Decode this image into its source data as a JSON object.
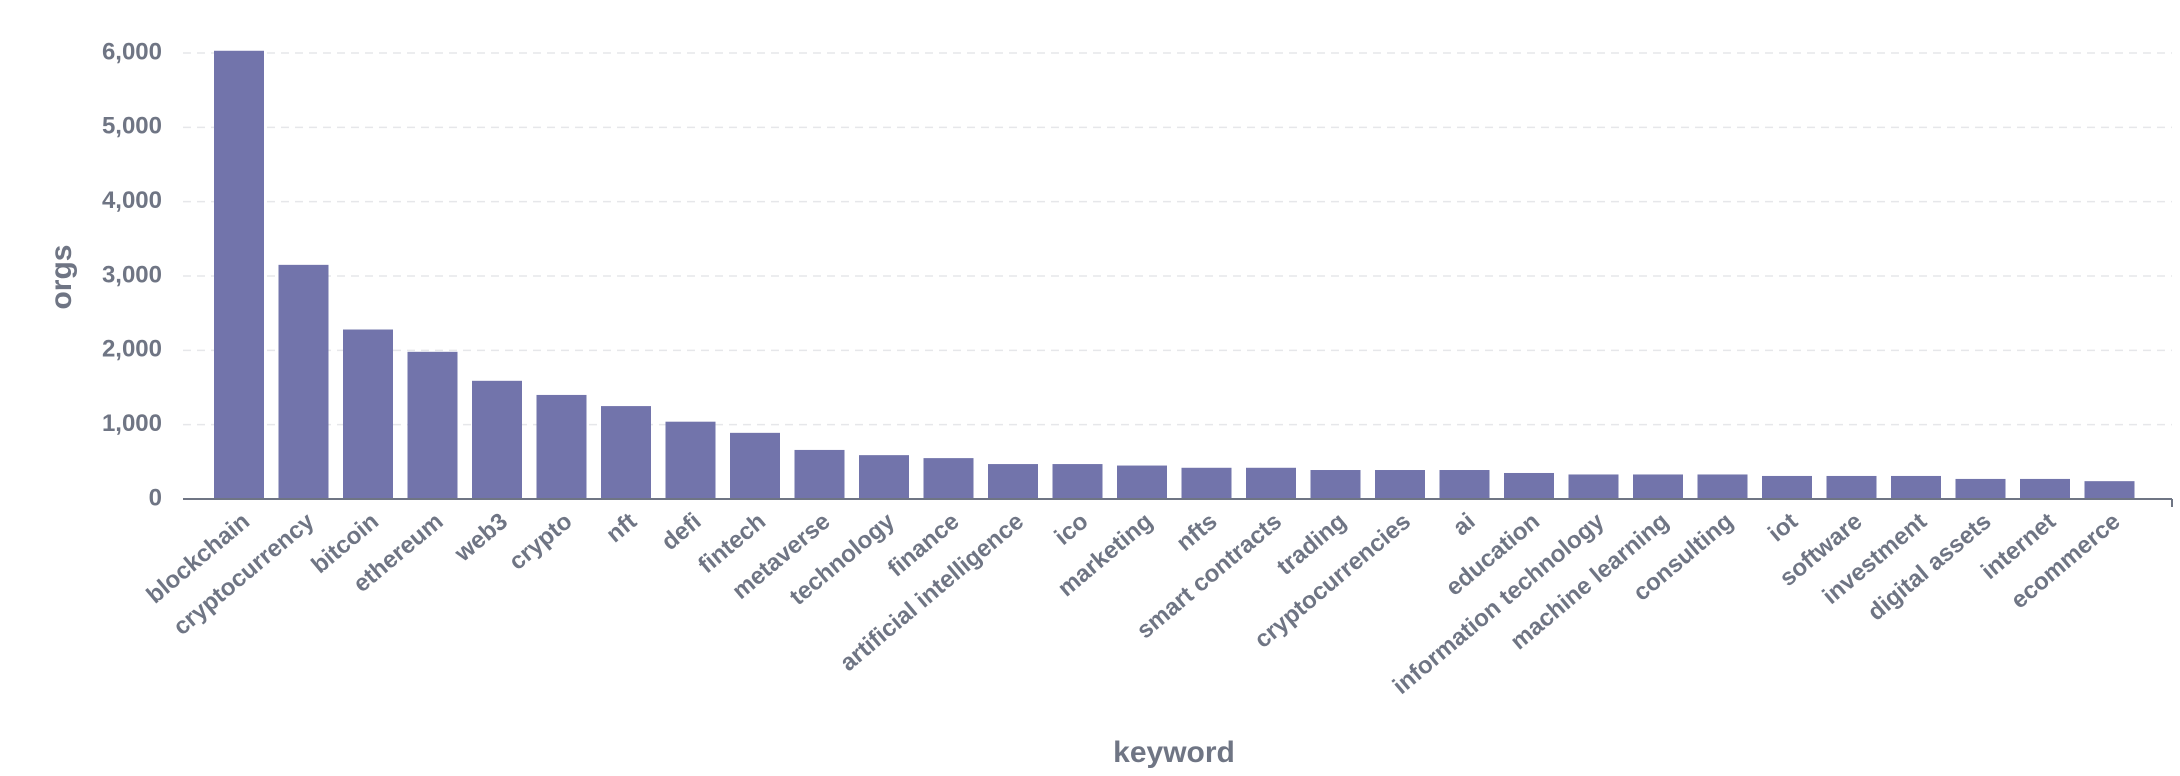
{
  "chart_data": {
    "type": "bar",
    "x_label": "keyword",
    "y_label": "orgs",
    "categories": [
      "blockchain",
      "cryptocurrency",
      "bitcoin",
      "ethereum",
      "web3",
      "crypto",
      "nft",
      "defi",
      "fintech",
      "metaverse",
      "technology",
      "finance",
      "artificial intelligence",
      "ico",
      "marketing",
      "nfts",
      "smart contracts",
      "trading",
      "cryptocurrencies",
      "ai",
      "education",
      "information technology",
      "machine learning",
      "consulting",
      "iot",
      "software",
      "investment",
      "digital assets",
      "internet",
      "ecommerce"
    ],
    "values": [
      6030,
      3150,
      2280,
      1980,
      1590,
      1400,
      1250,
      1040,
      890,
      660,
      590,
      550,
      470,
      470,
      450,
      420,
      420,
      390,
      390,
      390,
      350,
      330,
      330,
      330,
      310,
      310,
      310,
      270,
      270,
      240
    ],
    "color": "#7274ab",
    "ylim": [
      0,
      6000
    ],
    "yticks": [
      0,
      {
        "value": 1000,
        "label": "1,000"
      },
      {
        "value": 2000,
        "label": "2,000"
      },
      {
        "value": 3000,
        "label": "3,000"
      },
      {
        "value": 4000,
        "label": "4,000"
      },
      {
        "value": 5000,
        "label": "5,000"
      },
      {
        "value": 6000,
        "label": "6,000"
      }
    ],
    "grid": true
  }
}
